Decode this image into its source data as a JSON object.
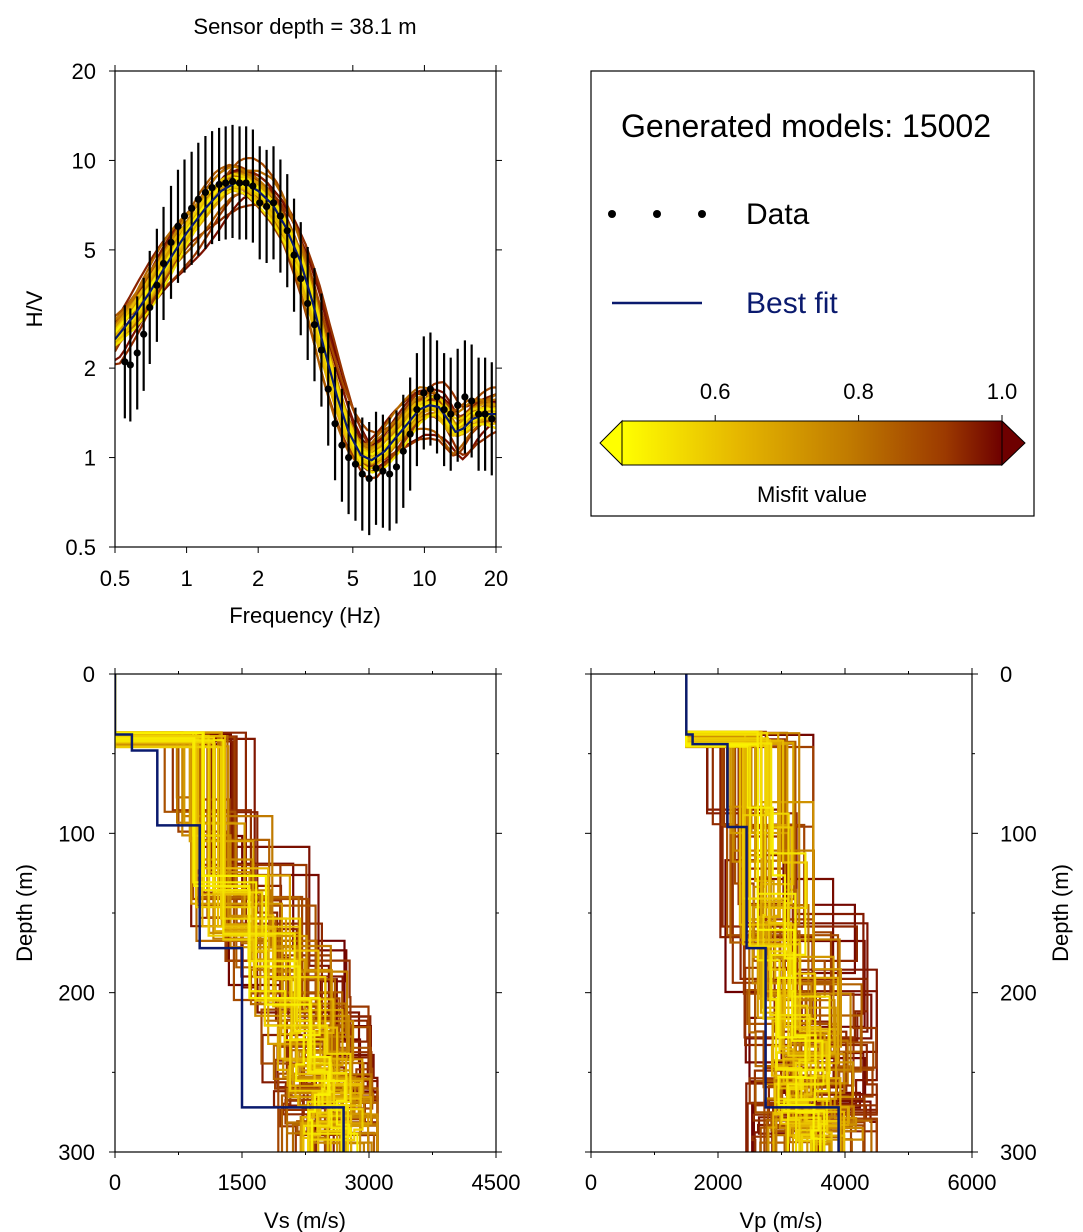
{
  "title": "Sensor depth = 38.1 m",
  "legend": {
    "generated_label": "Generated models: 15002",
    "data_label": "Data",
    "bestfit_label": "Best fit",
    "colorbar": {
      "label": "Misfit value",
      "ticks": [
        "0.6",
        "0.8",
        "1.0"
      ],
      "tick_values": [
        0.6,
        0.8,
        1.0
      ],
      "range": [
        0.47,
        1.0
      ],
      "colors": [
        "#ffff00",
        "#e6b800",
        "#c07a00",
        "#9c3a00",
        "#6e0000"
      ]
    }
  },
  "colors": {
    "best_fit": "#0a1a6e",
    "data_points": "#000000",
    "misfit_low": "#ffff00",
    "misfit_high": "#6e0000"
  },
  "chart_data": [
    {
      "type": "line",
      "name": "hv",
      "xlabel": "Frequency (Hz)",
      "ylabel": "H/V",
      "xscale": "log",
      "yscale": "log",
      "xlim": [
        0.5,
        20
      ],
      "ylim": [
        0.5,
        20
      ],
      "xticks": [
        "0.5",
        "1",
        "2",
        "5",
        "10",
        "20"
      ],
      "xtick_values": [
        0.5,
        1,
        2,
        5,
        10,
        20
      ],
      "yticks": [
        "0.5",
        "1",
        "2",
        "5",
        "10",
        "20"
      ],
      "ytick_values": [
        0.5,
        1,
        2,
        5,
        10,
        20
      ],
      "data": {
        "x": [
          0.55,
          0.58,
          0.62,
          0.66,
          0.7,
          0.75,
          0.8,
          0.86,
          0.92,
          0.98,
          1.05,
          1.12,
          1.2,
          1.28,
          1.37,
          1.46,
          1.56,
          1.67,
          1.78,
          1.9,
          2.03,
          2.17,
          2.32,
          2.48,
          2.65,
          2.83,
          3.02,
          3.23,
          3.45,
          3.69,
          3.94,
          4.21,
          4.5,
          4.8,
          5.13,
          5.48,
          5.86,
          6.26,
          6.69,
          7.14,
          7.63,
          8.15,
          8.71,
          9.3,
          9.94,
          10.6,
          11.3,
          12.1,
          12.9,
          13.8,
          14.8,
          15.8,
          16.9,
          18.0,
          19.2
        ],
        "y": [
          2.1,
          2.05,
          2.25,
          2.6,
          3.2,
          3.8,
          4.5,
          5.3,
          6.0,
          6.5,
          6.9,
          7.4,
          7.8,
          8.1,
          8.3,
          8.4,
          8.5,
          8.4,
          8.4,
          8.2,
          7.2,
          7.0,
          7.2,
          6.5,
          5.8,
          4.8,
          4.0,
          3.3,
          2.8,
          2.3,
          1.7,
          1.3,
          1.1,
          1.0,
          0.95,
          0.88,
          0.85,
          0.92,
          0.9,
          0.88,
          0.93,
          1.05,
          1.2,
          1.45,
          1.65,
          1.7,
          1.6,
          1.45,
          1.4,
          1.5,
          1.6,
          1.55,
          1.4,
          1.4,
          1.35
        ],
        "err_factor": 1.55
      },
      "best_fit": {
        "x": [
          0.5,
          0.6,
          0.7,
          0.8,
          0.9,
          1.0,
          1.2,
          1.4,
          1.6,
          1.8,
          2.0,
          2.3,
          2.6,
          3.0,
          3.4,
          3.8,
          4.3,
          4.8,
          5.4,
          6.0,
          6.8,
          7.6,
          8.5,
          9.5,
          10.5,
          11.5,
          12.5,
          13.5,
          14.5,
          16.0,
          18.0,
          20.0
        ],
        "y": [
          2.5,
          3.0,
          3.6,
          4.3,
          5.0,
          5.7,
          6.9,
          7.9,
          8.4,
          8.3,
          7.9,
          7.1,
          6.0,
          4.6,
          3.3,
          2.3,
          1.6,
          1.22,
          1.02,
          0.98,
          1.05,
          1.17,
          1.3,
          1.45,
          1.5,
          1.48,
          1.35,
          1.22,
          1.25,
          1.35,
          1.4,
          1.4
        ]
      }
    },
    {
      "type": "line",
      "name": "vs-profile",
      "xlabel": "Vs (m/s)",
      "ylabel": "Depth (m)",
      "xlim": [
        0,
        4500
      ],
      "ylim": [
        300,
        0
      ],
      "xticks": [
        "0",
        "1500",
        "3000",
        "4500"
      ],
      "xtick_values": [
        0,
        1500,
        3000,
        4500
      ],
      "yticks": [
        "0",
        "100",
        "200",
        "300"
      ],
      "ytick_values": [
        0,
        100,
        200,
        300
      ],
      "best_fit": {
        "velocity": [
          0,
          0,
          200,
          200,
          500,
          500,
          1000,
          1000,
          1500,
          1500,
          2700,
          2700
        ],
        "depth": [
          0,
          38,
          38,
          48,
          48,
          95,
          95,
          172,
          172,
          272,
          272,
          300
        ]
      }
    },
    {
      "type": "line",
      "name": "vp-profile",
      "xlabel": "Vp (m/s)",
      "ylabel": "Depth (m)",
      "xlim": [
        0,
        6000
      ],
      "ylim": [
        300,
        0
      ],
      "xticks": [
        "0",
        "2000",
        "4000",
        "6000"
      ],
      "xtick_values": [
        0,
        2000,
        4000,
        6000
      ],
      "yticks": [
        "0",
        "100",
        "200",
        "300"
      ],
      "ytick_values": [
        0,
        100,
        200,
        300
      ],
      "best_fit": {
        "velocity": [
          1500,
          1500,
          1600,
          1600,
          2150,
          2150,
          2450,
          2450,
          2750,
          2750,
          3900,
          3900
        ],
        "depth": [
          0,
          38,
          38,
          44,
          44,
          96,
          96,
          172,
          172,
          272,
          272,
          300
        ]
      }
    }
  ]
}
